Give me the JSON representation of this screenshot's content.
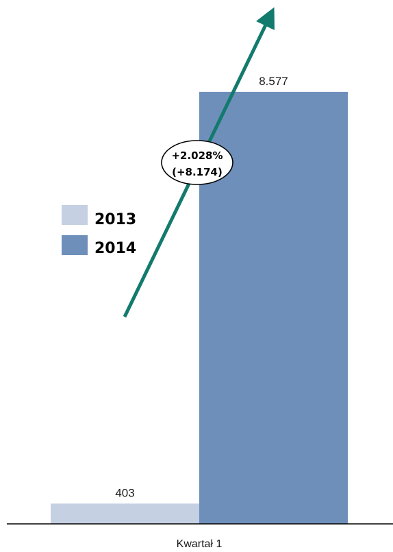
{
  "chart_data": {
    "type": "bar",
    "categories": [
      "Kwartał 1"
    ],
    "series": [
      {
        "name": "2013",
        "values": [
          403
        ],
        "value_label": "403",
        "color": "#c5d0e3"
      },
      {
        "name": "2014",
        "values": [
          8577
        ],
        "value_label": "8.577",
        "color": "#6f8fbb"
      }
    ],
    "ylim": [
      0,
      10400
    ],
    "grid": false,
    "legend_position": "left",
    "annotation": {
      "lines": [
        "+2.028%",
        "(+8.174)"
      ],
      "arrow_color": "#137a6e"
    },
    "axis_color": "#000000"
  }
}
